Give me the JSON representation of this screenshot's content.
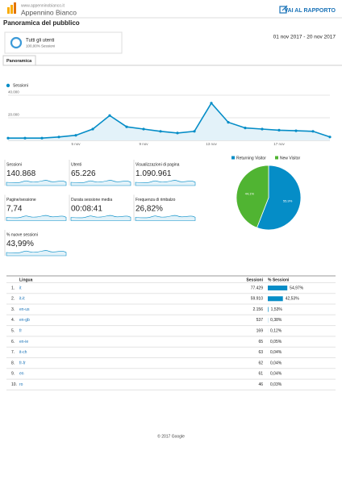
{
  "header": {
    "site": "www.appenninobianco.it",
    "name": "Appennino Bianco",
    "link": "VAI AL RAPPORTO"
  },
  "title": "Panoramica del pubblico",
  "segment": {
    "name": "Tutti gli utenti",
    "share": "100,00% Sessioni"
  },
  "date_range": "01 nov 2017 - 20 nov 2017",
  "tab": "Panoramica",
  "chart_data": [
    {
      "type": "line",
      "legend": "Sessioni",
      "color": "#058dc7",
      "categories": [
        null,
        null,
        null,
        null,
        "5 nov",
        null,
        null,
        null,
        "9 nov",
        null,
        null,
        null,
        "13 nov",
        null,
        null,
        null,
        "17 nov",
        null,
        null,
        null
      ],
      "values": [
        2000,
        2000,
        2000,
        3000,
        4500,
        10000,
        22000,
        12000,
        10000,
        8000,
        6500,
        8000,
        33000,
        16000,
        11000,
        10000,
        9000,
        8500,
        8000,
        3000
      ],
      "ylim": [
        0,
        45000
      ],
      "yticks": [
        {
          "value": 40000,
          "label": "40.000"
        },
        {
          "value": 20000,
          "label": "20.000"
        }
      ]
    },
    {
      "type": "pie",
      "categories": [
        "Returning Visitor",
        "New Visitor"
      ],
      "colors": [
        "#058dc7",
        "#50b432"
      ],
      "values": [
        55.9,
        44.1
      ],
      "value_labels": [
        "55,9%",
        "44,1%"
      ]
    }
  ],
  "metrics": [
    {
      "label": "Sessioni",
      "value": "140.868"
    },
    {
      "label": "Utenti",
      "value": "65.226"
    },
    {
      "label": "Visualizzazioni di pagina",
      "value": "1.090.961"
    },
    {
      "label": "Pagine/sessione",
      "value": "7,74"
    },
    {
      "label": "Durata sessione media",
      "value": "00:08:41"
    },
    {
      "label": "Frequenza di rimbalzo",
      "value": "26,82%"
    },
    {
      "label": "% nuove sessioni",
      "value": "43,99%"
    }
  ],
  "table": {
    "headers": [
      "Lingua",
      "Sessioni",
      "% Sessioni"
    ],
    "rows": [
      {
        "n": "1.",
        "lang": "it",
        "sessions": "77.429",
        "share": 54.97,
        "share_label": "54,97%"
      },
      {
        "n": "2.",
        "lang": "it-it",
        "sessions": "59.910",
        "share": 42.53,
        "share_label": "42,53%"
      },
      {
        "n": "3.",
        "lang": "en-us",
        "sessions": "2.156",
        "share": 1.53,
        "share_label": "1,53%"
      },
      {
        "n": "4.",
        "lang": "en-gb",
        "sessions": "537",
        "share": 0.38,
        "share_label": "0,38%"
      },
      {
        "n": "5.",
        "lang": "fr",
        "sessions": "169",
        "share": 0.12,
        "share_label": "0,12%"
      },
      {
        "n": "6.",
        "lang": "en-ie",
        "sessions": "65",
        "share": 0.05,
        "share_label": "0,05%"
      },
      {
        "n": "7.",
        "lang": "it-ch",
        "sessions": "63",
        "share": 0.04,
        "share_label": "0,04%"
      },
      {
        "n": "8.",
        "lang": "fr-fr",
        "sessions": "62",
        "share": 0.04,
        "share_label": "0,04%"
      },
      {
        "n": "9.",
        "lang": "en",
        "sessions": "61",
        "share": 0.04,
        "share_label": "0,04%"
      },
      {
        "n": "10.",
        "lang": "ro",
        "sessions": "46",
        "share": 0.03,
        "share_label": "0,03%"
      }
    ]
  },
  "footer": "© 2017 Google"
}
